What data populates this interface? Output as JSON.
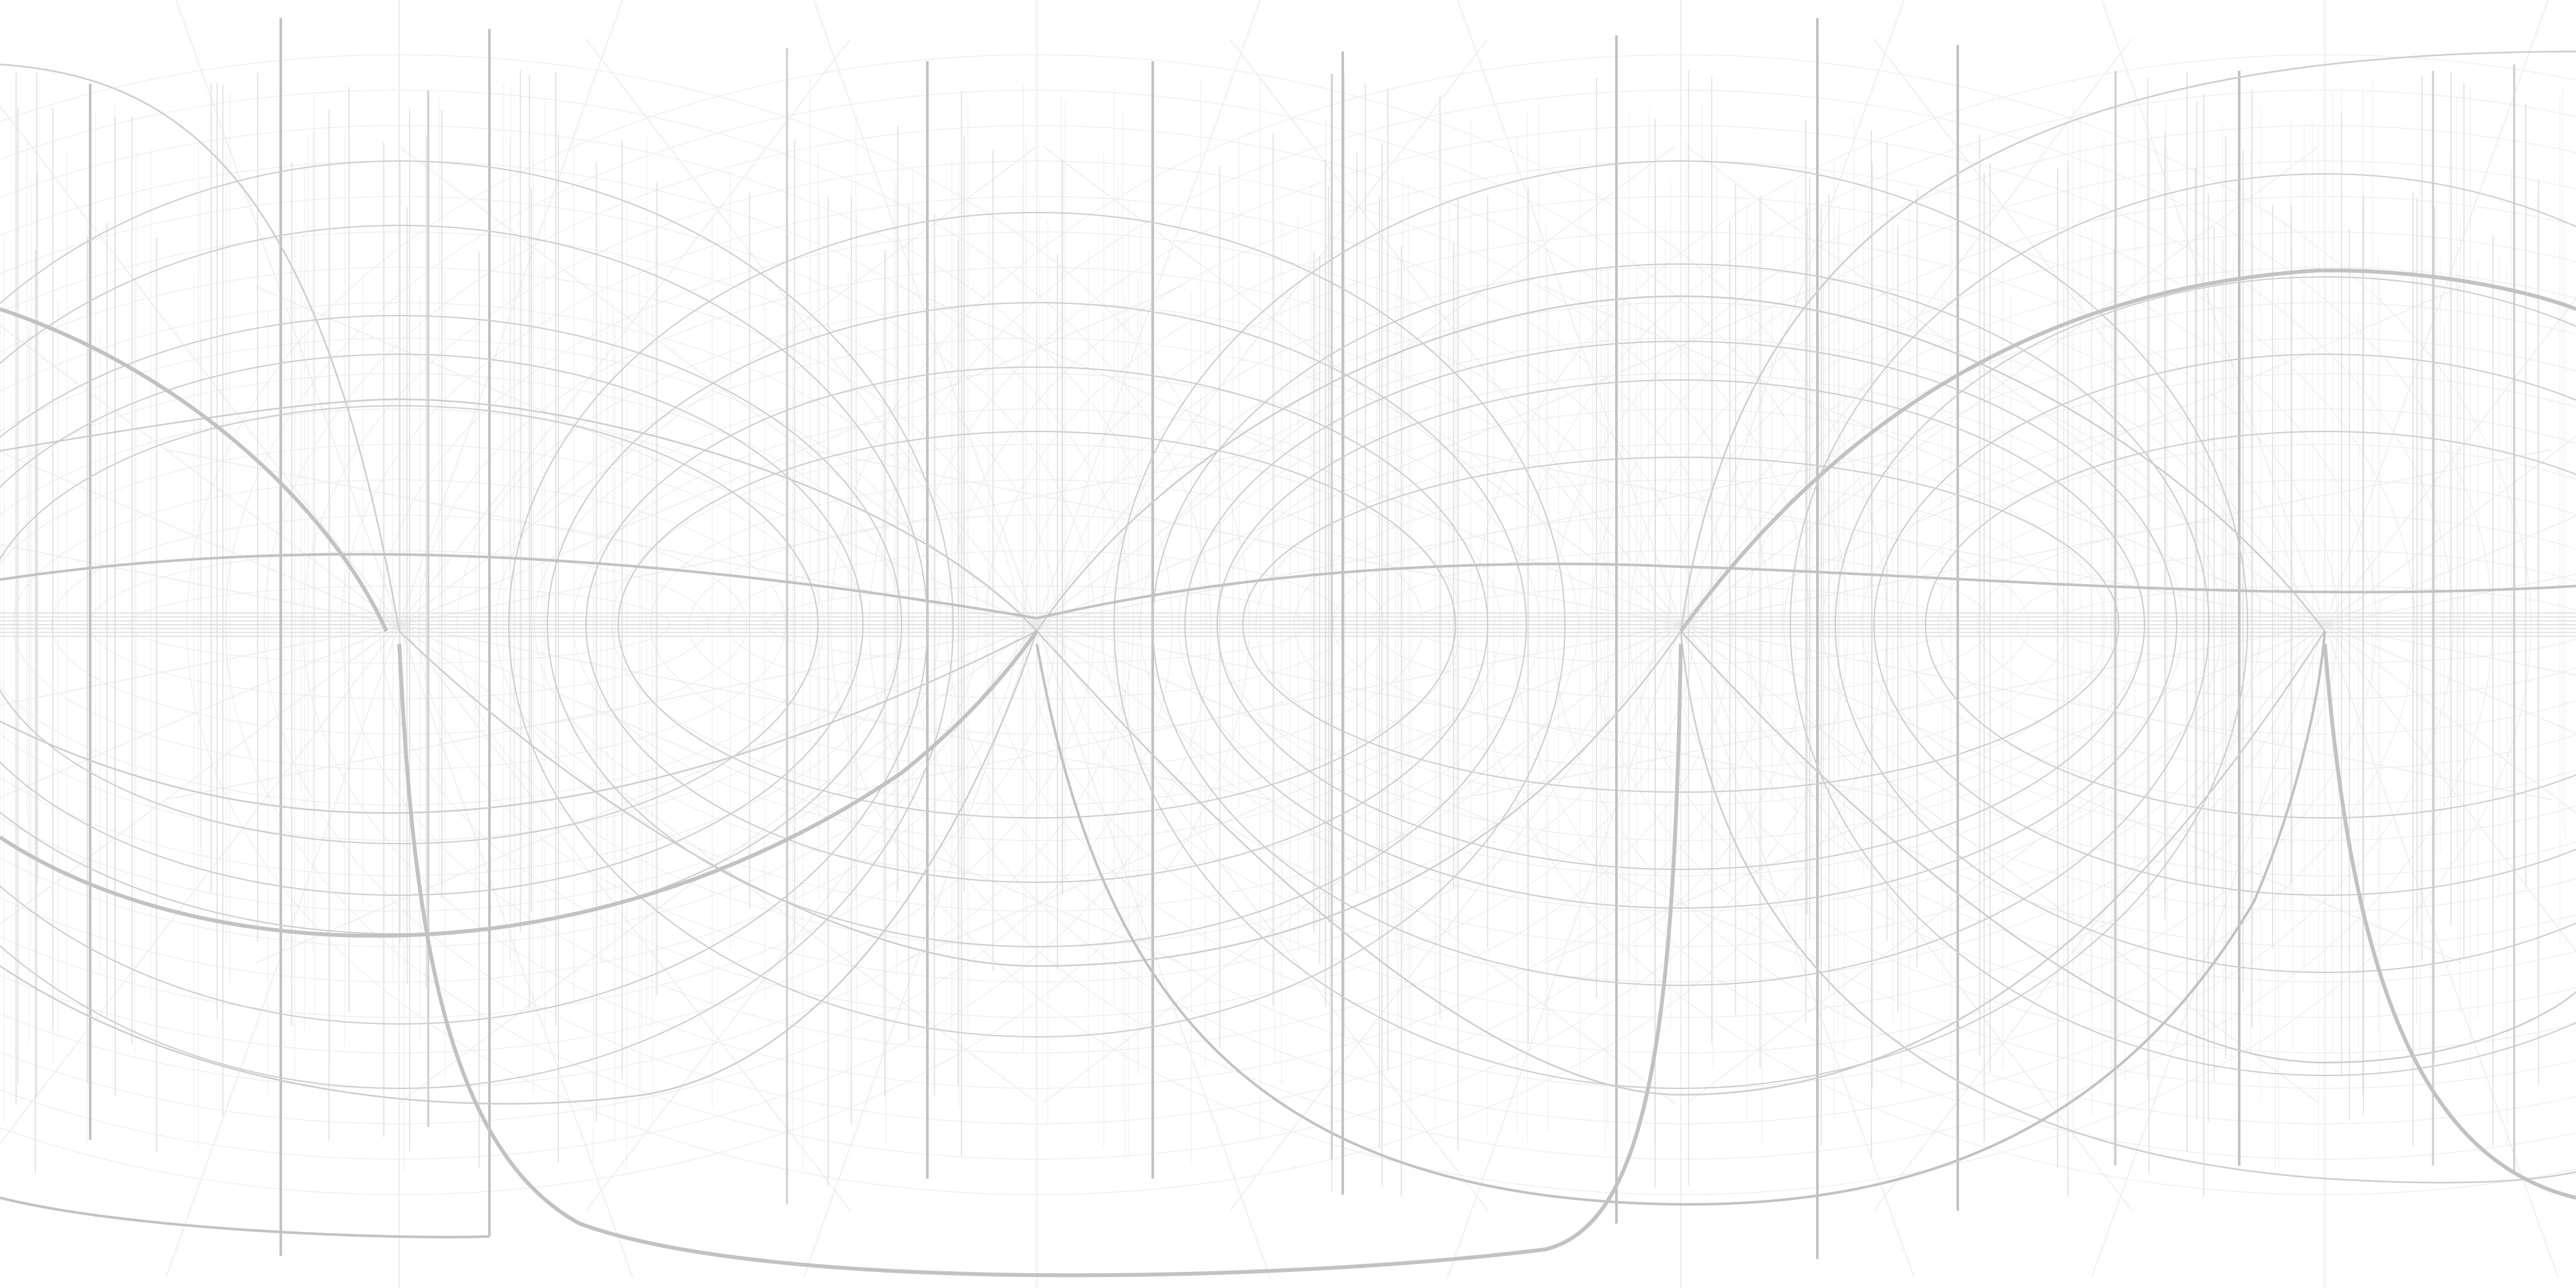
{
  "scene": {
    "description_free": true,
    "background_color": "#ffffff",
    "line_colors": {
      "strong": "#c2c2c2",
      "medium": "#cdcdcd",
      "light": "#dddddd",
      "faint": "#ececec"
    }
  }
}
